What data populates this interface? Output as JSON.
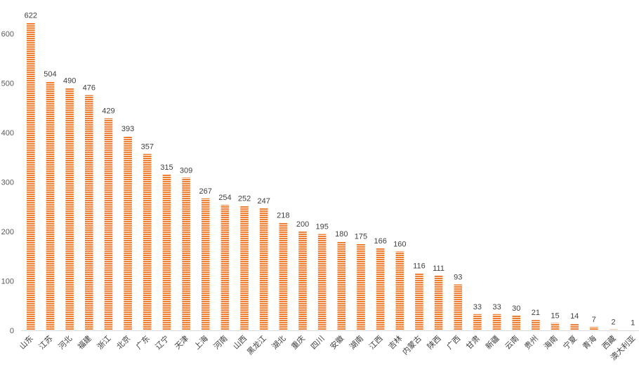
{
  "chart_data": {
    "type": "bar",
    "title": "",
    "xlabel": "",
    "ylabel": "",
    "ylim": [
      0,
      650
    ],
    "yticks": [
      0,
      100,
      200,
      300,
      400,
      500,
      600
    ],
    "grid": false,
    "legend": "none",
    "bar_color": "#ED7D31",
    "bar_fill_pattern": "horizontal-stripes",
    "categories": [
      "山东",
      "江苏",
      "河北",
      "福建",
      "浙江",
      "北京",
      "广东",
      "辽宁",
      "天津",
      "上海",
      "河南",
      "山西",
      "黑龙江",
      "湖北",
      "重庆",
      "四川",
      "安徽",
      "湖南",
      "江西",
      "吉林",
      "内蒙古",
      "陕西",
      "广西",
      "甘肃",
      "新疆",
      "云南",
      "贵州",
      "海南",
      "宁夏",
      "青海",
      "西藏",
      "澳大利亚"
    ],
    "values": [
      622,
      504,
      490,
      476,
      429,
      393,
      357,
      315,
      309,
      267,
      254,
      252,
      247,
      218,
      200,
      195,
      180,
      175,
      166,
      160,
      116,
      111,
      93,
      33,
      33,
      30,
      21,
      15,
      14,
      7,
      2,
      1
    ]
  }
}
